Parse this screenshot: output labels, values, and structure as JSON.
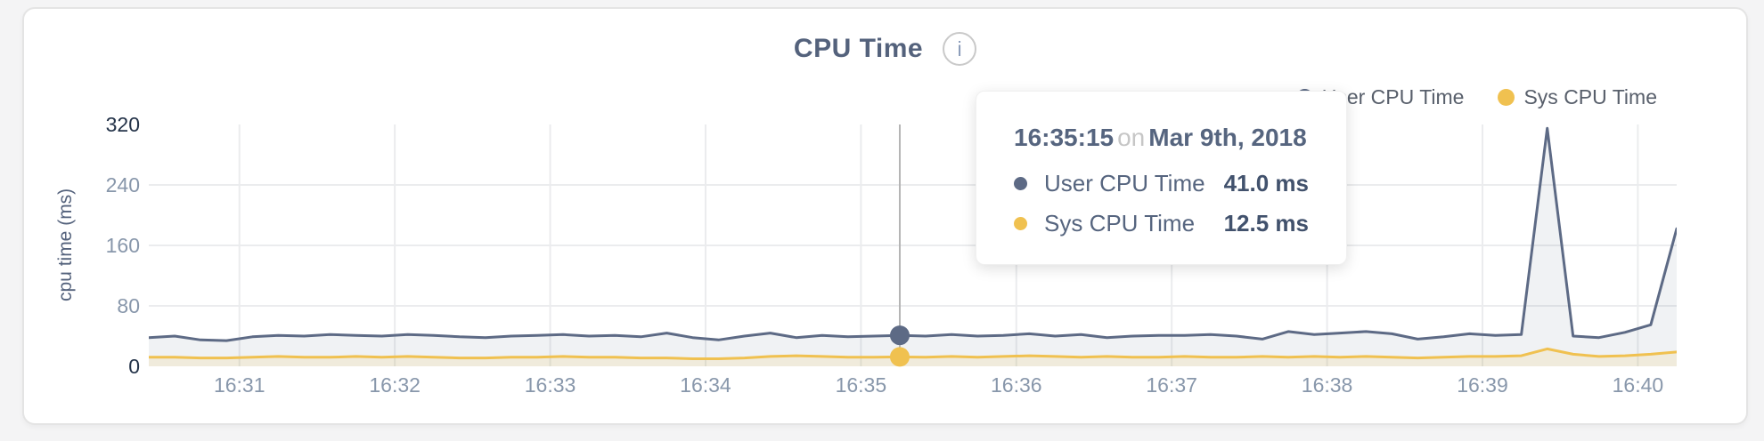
{
  "colors": {
    "page_background": "#f4f4f5",
    "card_background": "#ffffff",
    "grid": "#ebecee",
    "crosshair": "#b5b5b5",
    "tick_strong": "#243349",
    "tick_light": "#8897ab",
    "title": "#54627c",
    "user_series": "#5d6a85",
    "sys_series": "#f0c150"
  },
  "card": {
    "title": "CPU Time",
    "info_icon": "i"
  },
  "legend": {
    "items": [
      {
        "label": "User CPU Time",
        "color": "#5d6a85"
      },
      {
        "label": "Sys CPU Time",
        "color": "#f0c150"
      }
    ]
  },
  "tooltip": {
    "time": "16:35:15",
    "conj": "on",
    "date": "Mar 9th, 2018",
    "rows": [
      {
        "label": "User CPU Time",
        "value": "41.0 ms",
        "color": "#5d6a85"
      },
      {
        "label": "Sys CPU Time",
        "value": "12.5 ms",
        "color": "#f0c150"
      }
    ]
  },
  "chart_data": {
    "type": "area",
    "title": "CPU Time",
    "xlabel": "",
    "ylabel": "cpu time (ms)",
    "ylim": [
      0,
      320
    ],
    "yticks": [
      0,
      80,
      160,
      240,
      320
    ],
    "xticks": [
      "16:31",
      "16:32",
      "16:33",
      "16:34",
      "16:35",
      "16:36",
      "16:37",
      "16:38",
      "16:39",
      "16:40"
    ],
    "x_tick_indices": [
      3.5,
      9.5,
      15.5,
      21.5,
      27.5,
      33.5,
      39.5,
      45.5,
      51.5,
      57.5
    ],
    "grid": true,
    "legend_position": "top-right",
    "highlight_index": 29,
    "highlight_time": "16:35:15 on Mar 9th, 2018",
    "x_times": [
      "16:30:25",
      "16:30:35",
      "16:30:45",
      "16:30:55",
      "16:31:05",
      "16:31:15",
      "16:31:25",
      "16:31:35",
      "16:31:45",
      "16:31:55",
      "16:32:05",
      "16:32:15",
      "16:32:25",
      "16:32:35",
      "16:32:45",
      "16:32:55",
      "16:33:05",
      "16:33:15",
      "16:33:25",
      "16:33:35",
      "16:33:45",
      "16:33:55",
      "16:34:05",
      "16:34:15",
      "16:34:25",
      "16:34:35",
      "16:34:45",
      "16:34:55",
      "16:35:05",
      "16:35:15",
      "16:35:25",
      "16:35:35",
      "16:35:45",
      "16:35:55",
      "16:36:05",
      "16:36:15",
      "16:36:25",
      "16:36:35",
      "16:36:45",
      "16:36:55",
      "16:37:05",
      "16:37:15",
      "16:37:25",
      "16:37:35",
      "16:37:45",
      "16:37:55",
      "16:38:05",
      "16:38:15",
      "16:38:25",
      "16:38:35",
      "16:38:45",
      "16:38:55",
      "16:39:05",
      "16:39:15",
      "16:39:25",
      "16:39:35",
      "16:39:45",
      "16:39:55",
      "16:40:05",
      "16:40:15"
    ],
    "series": [
      {
        "name": "User CPU Time",
        "color": "#5d6a85",
        "fill": "rgba(93,106,133,0.09)",
        "values": [
          38,
          40,
          35,
          34,
          39,
          41,
          40,
          42,
          41,
          40,
          42,
          41,
          39,
          38,
          40,
          41,
          42,
          40,
          41,
          39,
          44,
          38,
          35,
          40,
          44,
          38,
          41,
          39,
          40,
          41,
          40,
          42,
          40,
          41,
          43,
          40,
          42,
          38,
          40,
          41,
          41,
          42,
          40,
          36,
          46,
          42,
          44,
          46,
          43,
          36,
          39,
          43,
          41,
          42,
          315,
          40,
          38,
          45,
          55,
          182
        ]
      },
      {
        "name": "Sys CPU Time",
        "color": "#f0c150",
        "fill": "rgba(240,195,80,0.14)",
        "values": [
          12,
          12,
          11,
          11,
          12,
          13,
          12,
          12,
          13,
          12,
          13,
          12,
          11,
          11,
          12,
          12,
          13,
          12,
          12,
          11,
          11,
          10,
          10,
          11,
          13,
          14,
          13,
          12,
          12,
          12.5,
          12,
          13,
          12,
          13,
          14,
          13,
          12,
          13,
          12,
          12,
          13,
          12,
          12,
          13,
          12,
          13,
          12,
          13,
          12,
          11,
          12,
          13,
          13,
          14,
          23,
          16,
          13,
          14,
          16,
          19
        ]
      }
    ]
  }
}
